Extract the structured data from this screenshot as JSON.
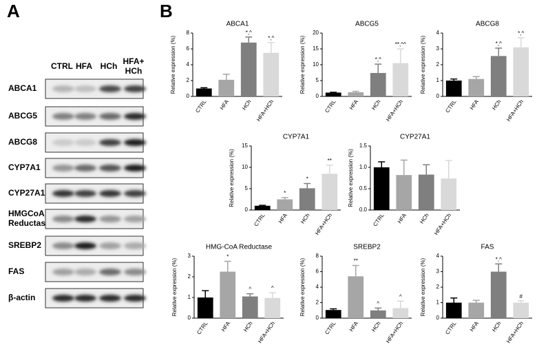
{
  "panel_a": {
    "label": "A",
    "lanes": [
      [
        "CTRL"
      ],
      [
        "HFA"
      ],
      [
        "HCh"
      ],
      [
        "HFA+",
        "HCh"
      ]
    ],
    "rows": [
      [
        "ABCA1"
      ],
      [
        "ABCG5"
      ],
      [
        "ABCG8"
      ],
      [
        "CYP7A1"
      ],
      [
        "CYP27A1"
      ],
      [
        "HMGCoA",
        "Reductase"
      ],
      [
        "SREBP2"
      ],
      [
        "FAS"
      ],
      [
        "β-actin"
      ]
    ]
  },
  "panel_b": {
    "label": "B"
  },
  "chart_data": [
    {
      "type": "bar",
      "title": "ABCA1",
      "y_label": "Relative expression (%)",
      "categories": [
        "CTRL",
        "HFA",
        "HCh",
        "HFA+HCh"
      ],
      "values": [
        1.0,
        2.1,
        6.8,
        5.5
      ],
      "errors": [
        0.1,
        0.7,
        0.7,
        1.3
      ],
      "annotations": [
        null,
        null,
        "*,^",
        "*,^"
      ],
      "colors": [
        "#000000",
        "#a6a6a6",
        "#7f7f7f",
        "#d9d9d9"
      ],
      "ylim": [
        0,
        8
      ],
      "yticks": [
        0,
        2,
        4,
        6,
        8
      ]
    },
    {
      "type": "bar",
      "title": "ABCG5",
      "y_label": "Relative expression (%)",
      "categories": [
        "CTRL",
        "HFA",
        "HCh",
        "HFA+HCh"
      ],
      "values": [
        1.2,
        1.3,
        7.4,
        10.5
      ],
      "errors": [
        0.1,
        0.3,
        2.8,
        4.5
      ],
      "annotations": [
        null,
        null,
        "*,^",
        "**,^^"
      ],
      "colors": [
        "#000000",
        "#a6a6a6",
        "#7f7f7f",
        "#d9d9d9"
      ],
      "ylim": [
        0,
        20
      ],
      "yticks": [
        0,
        5,
        10,
        15,
        20
      ]
    },
    {
      "type": "bar",
      "title": "ABCG8",
      "y_label": "Relative expression (%)",
      "categories": [
        "CTRL",
        "HFA",
        "HCh",
        "HFA+HCh"
      ],
      "values": [
        1.0,
        1.1,
        2.55,
        3.1
      ],
      "errors": [
        0.1,
        0.15,
        0.5,
        0.6
      ],
      "annotations": [
        null,
        null,
        "*,^",
        "*,^"
      ],
      "colors": [
        "#000000",
        "#a6a6a6",
        "#7f7f7f",
        "#d9d9d9"
      ],
      "ylim": [
        0,
        4
      ],
      "yticks": [
        0,
        1,
        2,
        3,
        4
      ]
    },
    {
      "type": "bar",
      "title": "CYP7A1",
      "y_label": "Relative expression (%)",
      "categories": [
        "CTRL",
        "HFA",
        "HCh",
        "HFA+HCh"
      ],
      "values": [
        1.0,
        2.5,
        5.1,
        8.5
      ],
      "errors": [
        0.1,
        0.4,
        1.1,
        2.0
      ],
      "annotations": [
        null,
        "*",
        "*",
        "**"
      ],
      "colors": [
        "#000000",
        "#a6a6a6",
        "#7f7f7f",
        "#d9d9d9"
      ],
      "ylim": [
        0,
        15
      ],
      "yticks": [
        0,
        5,
        10,
        15
      ]
    },
    {
      "type": "bar",
      "title": "CYP27A1",
      "y_label": "Relative expression (%)",
      "categories": [
        "CTRL",
        "HFA",
        "HCh",
        "HFA+HCh"
      ],
      "values": [
        1.0,
        0.82,
        0.83,
        0.74
      ],
      "errors": [
        0.13,
        0.35,
        0.23,
        0.42
      ],
      "annotations": [
        null,
        null,
        null,
        null
      ],
      "colors": [
        "#000000",
        "#a6a6a6",
        "#7f7f7f",
        "#d9d9d9"
      ],
      "ylim": [
        0,
        1.5
      ],
      "yticks": [
        {
          "value": 0,
          "label": "0.0"
        },
        0.5,
        {
          "value": 1,
          "label": "1.0"
        },
        1.5
      ]
    },
    {
      "type": "bar",
      "title": "HMG-CoA Reductase",
      "y_label": "Relative expression (%)",
      "categories": [
        "CTRL",
        "HFA",
        "HCh",
        "HFA+HCh"
      ],
      "values": [
        1.0,
        2.25,
        1.05,
        0.98
      ],
      "errors": [
        0.33,
        0.5,
        0.13,
        0.25
      ],
      "annotations": [
        null,
        "*",
        "^",
        "^"
      ],
      "colors": [
        "#000000",
        "#a6a6a6",
        "#7f7f7f",
        "#d9d9d9"
      ],
      "ylim": [
        0,
        3
      ],
      "yticks": [
        0,
        1,
        2,
        3
      ]
    },
    {
      "type": "bar",
      "title": "SREBP2",
      "y_label": "Relative expression (%)",
      "categories": [
        "CTRL",
        "HFA",
        "HCh",
        "HFA+HCh"
      ],
      "values": [
        1.05,
        5.4,
        1.0,
        1.3
      ],
      "errors": [
        0.15,
        1.4,
        0.3,
        0.9
      ],
      "annotations": [
        null,
        "**",
        "^",
        "^"
      ],
      "colors": [
        "#000000",
        "#a6a6a6",
        "#7f7f7f",
        "#d9d9d9"
      ],
      "ylim": [
        0,
        8
      ],
      "yticks": [
        0,
        2,
        4,
        6,
        8
      ]
    },
    {
      "type": "bar",
      "title": "FAS",
      "y_label": "Relative expression (%)",
      "categories": [
        "CTRL",
        "HFA",
        "HCh",
        "HFA+HCh"
      ],
      "values": [
        1.0,
        1.0,
        3.0,
        1.0
      ],
      "errors": [
        0.3,
        0.15,
        0.5,
        0.12
      ],
      "annotations": [
        null,
        null,
        "*,^",
        "#"
      ],
      "colors": [
        "#000000",
        "#a6a6a6",
        "#7f7f7f",
        "#d9d9d9"
      ],
      "ylim": [
        0,
        4
      ],
      "yticks": [
        0,
        1,
        2,
        3,
        4
      ]
    }
  ]
}
